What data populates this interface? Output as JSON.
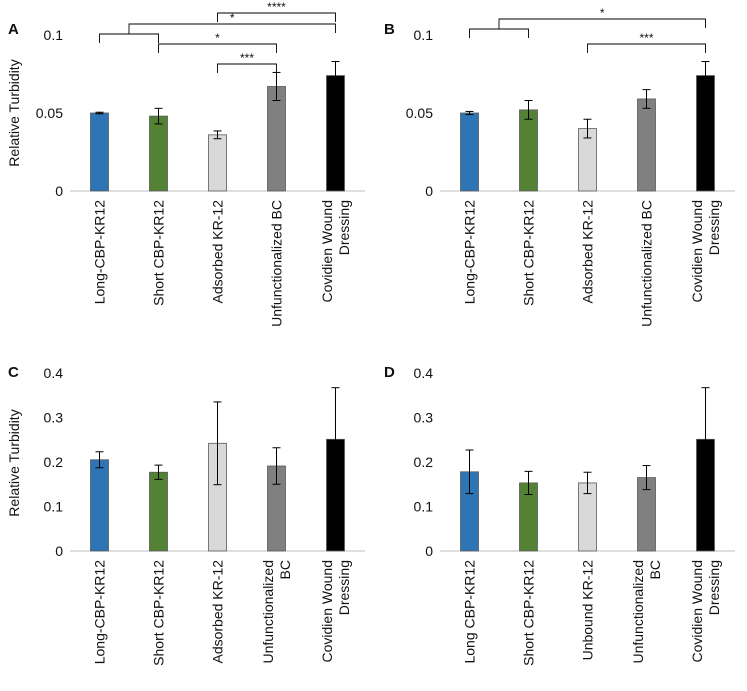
{
  "figure": {
    "panels": [
      "A",
      "B",
      "C",
      "D"
    ],
    "y_axis_title": "Relative Turbidity",
    "bar_colors": [
      "#2e75b6",
      "#548235",
      "#d9d9d9",
      "#808080",
      "#000000"
    ]
  },
  "chart_data": [
    {
      "panel": "A",
      "type": "bar",
      "title": "",
      "ylabel": "Relative Turbidity",
      "ylim": [
        0,
        0.1
      ],
      "yticks": [
        0,
        0.05,
        0.1
      ],
      "ytick_labels": [
        "0",
        "0.05",
        "0.1"
      ],
      "categories": [
        "Long-CBP-KR12",
        "Short CBP-KR12",
        "Adsorbed KR-12",
        "Unfunctionalized BC",
        "Covidien Wound Dressing"
      ],
      "category_lines": [
        [
          "Long-CBP-KR12"
        ],
        [
          "Short CBP-KR12"
        ],
        [
          "Adsorbed KR-12"
        ],
        [
          "Unfunctionalized BC"
        ],
        [
          "Covidien Wound",
          "Dressing"
        ]
      ],
      "values": [
        0.05,
        0.048,
        0.036,
        0.067,
        0.074
      ],
      "errors": [
        0.0005,
        0.005,
        0.0025,
        0.009,
        0.009
      ],
      "significance": [
        {
          "from": 2,
          "to": 4,
          "label": "****"
        },
        {
          "from": [
            0,
            1
          ],
          "to": 4,
          "label": "*"
        },
        {
          "from": 1,
          "to": 3,
          "label": "*"
        },
        {
          "from": 2,
          "to": 3,
          "label": "***"
        }
      ]
    },
    {
      "panel": "B",
      "type": "bar",
      "title": "",
      "ylabel": "",
      "ylim": [
        0,
        0.1
      ],
      "yticks": [
        0,
        0.05,
        0.1
      ],
      "ytick_labels": [
        "0",
        "0.05",
        "0.1"
      ],
      "categories": [
        "Long-CBP-KR12",
        "Short CBP-KR12",
        "Adsorbed KR-12",
        "Unfunctionalized BC",
        "Covidien Wound Dressing"
      ],
      "category_lines": [
        [
          "Long-CBP-KR12"
        ],
        [
          "Short CBP-KR12"
        ],
        [
          "Adsorbed KR-12"
        ],
        [
          "Unfunctionalized BC"
        ],
        [
          "Covidien Wound",
          "Dressing"
        ]
      ],
      "values": [
        0.05,
        0.052,
        0.04,
        0.059,
        0.074
      ],
      "errors": [
        0.001,
        0.006,
        0.006,
        0.006,
        0.009
      ],
      "significance": [
        {
          "from": [
            0,
            1
          ],
          "to": 4,
          "label": "*"
        },
        {
          "from": 2,
          "to": 4,
          "label": "***"
        }
      ]
    },
    {
      "panel": "C",
      "type": "bar",
      "title": "",
      "ylabel": "Relative Turbidity",
      "ylim": [
        0,
        0.4
      ],
      "yticks": [
        0,
        0.1,
        0.2,
        0.3,
        0.4
      ],
      "ytick_labels": [
        "0",
        "0.1",
        "0.2",
        "0.3",
        "0.4"
      ],
      "categories": [
        "Long-CBP-KR12",
        "Short CBP-KR12",
        "Adsorbed KR-12",
        "Unfunctionalized BC",
        "Covidien Wound Dressing"
      ],
      "category_lines": [
        [
          "Long-CBP-KR12"
        ],
        [
          "Short CBP-KR12"
        ],
        [
          "Adsorbed KR-12"
        ],
        [
          "Unfunctionalized",
          "BC"
        ],
        [
          "Covidien Wound",
          "Dressing"
        ]
      ],
      "values": [
        0.205,
        0.177,
        0.242,
        0.191,
        0.251
      ],
      "errors": [
        0.018,
        0.016,
        0.093,
        0.041,
        0.116
      ],
      "significance": []
    },
    {
      "panel": "D",
      "type": "bar",
      "title": "",
      "ylabel": "",
      "ylim": [
        0,
        0.4
      ],
      "yticks": [
        0,
        0.1,
        0.2,
        0.3,
        0.4
      ],
      "ytick_labels": [
        "0",
        "0.1",
        "0.2",
        "0.3",
        "0.4"
      ],
      "categories": [
        "Long CBP-KR12",
        "Short CBP-KR12",
        "Unbound KR-12",
        "Unfunctionalized BC",
        "Covidien Wound Dressing"
      ],
      "category_lines": [
        [
          "Long CBP-KR12"
        ],
        [
          "Short CBP-KR12"
        ],
        [
          "Unbound KR-12"
        ],
        [
          "Unfunctionalized",
          "BC"
        ],
        [
          "Covidien Wound",
          "Dressing"
        ]
      ],
      "values": [
        0.178,
        0.153,
        0.153,
        0.165,
        0.251
      ],
      "errors": [
        0.049,
        0.026,
        0.024,
        0.027,
        0.116
      ],
      "significance": []
    }
  ]
}
